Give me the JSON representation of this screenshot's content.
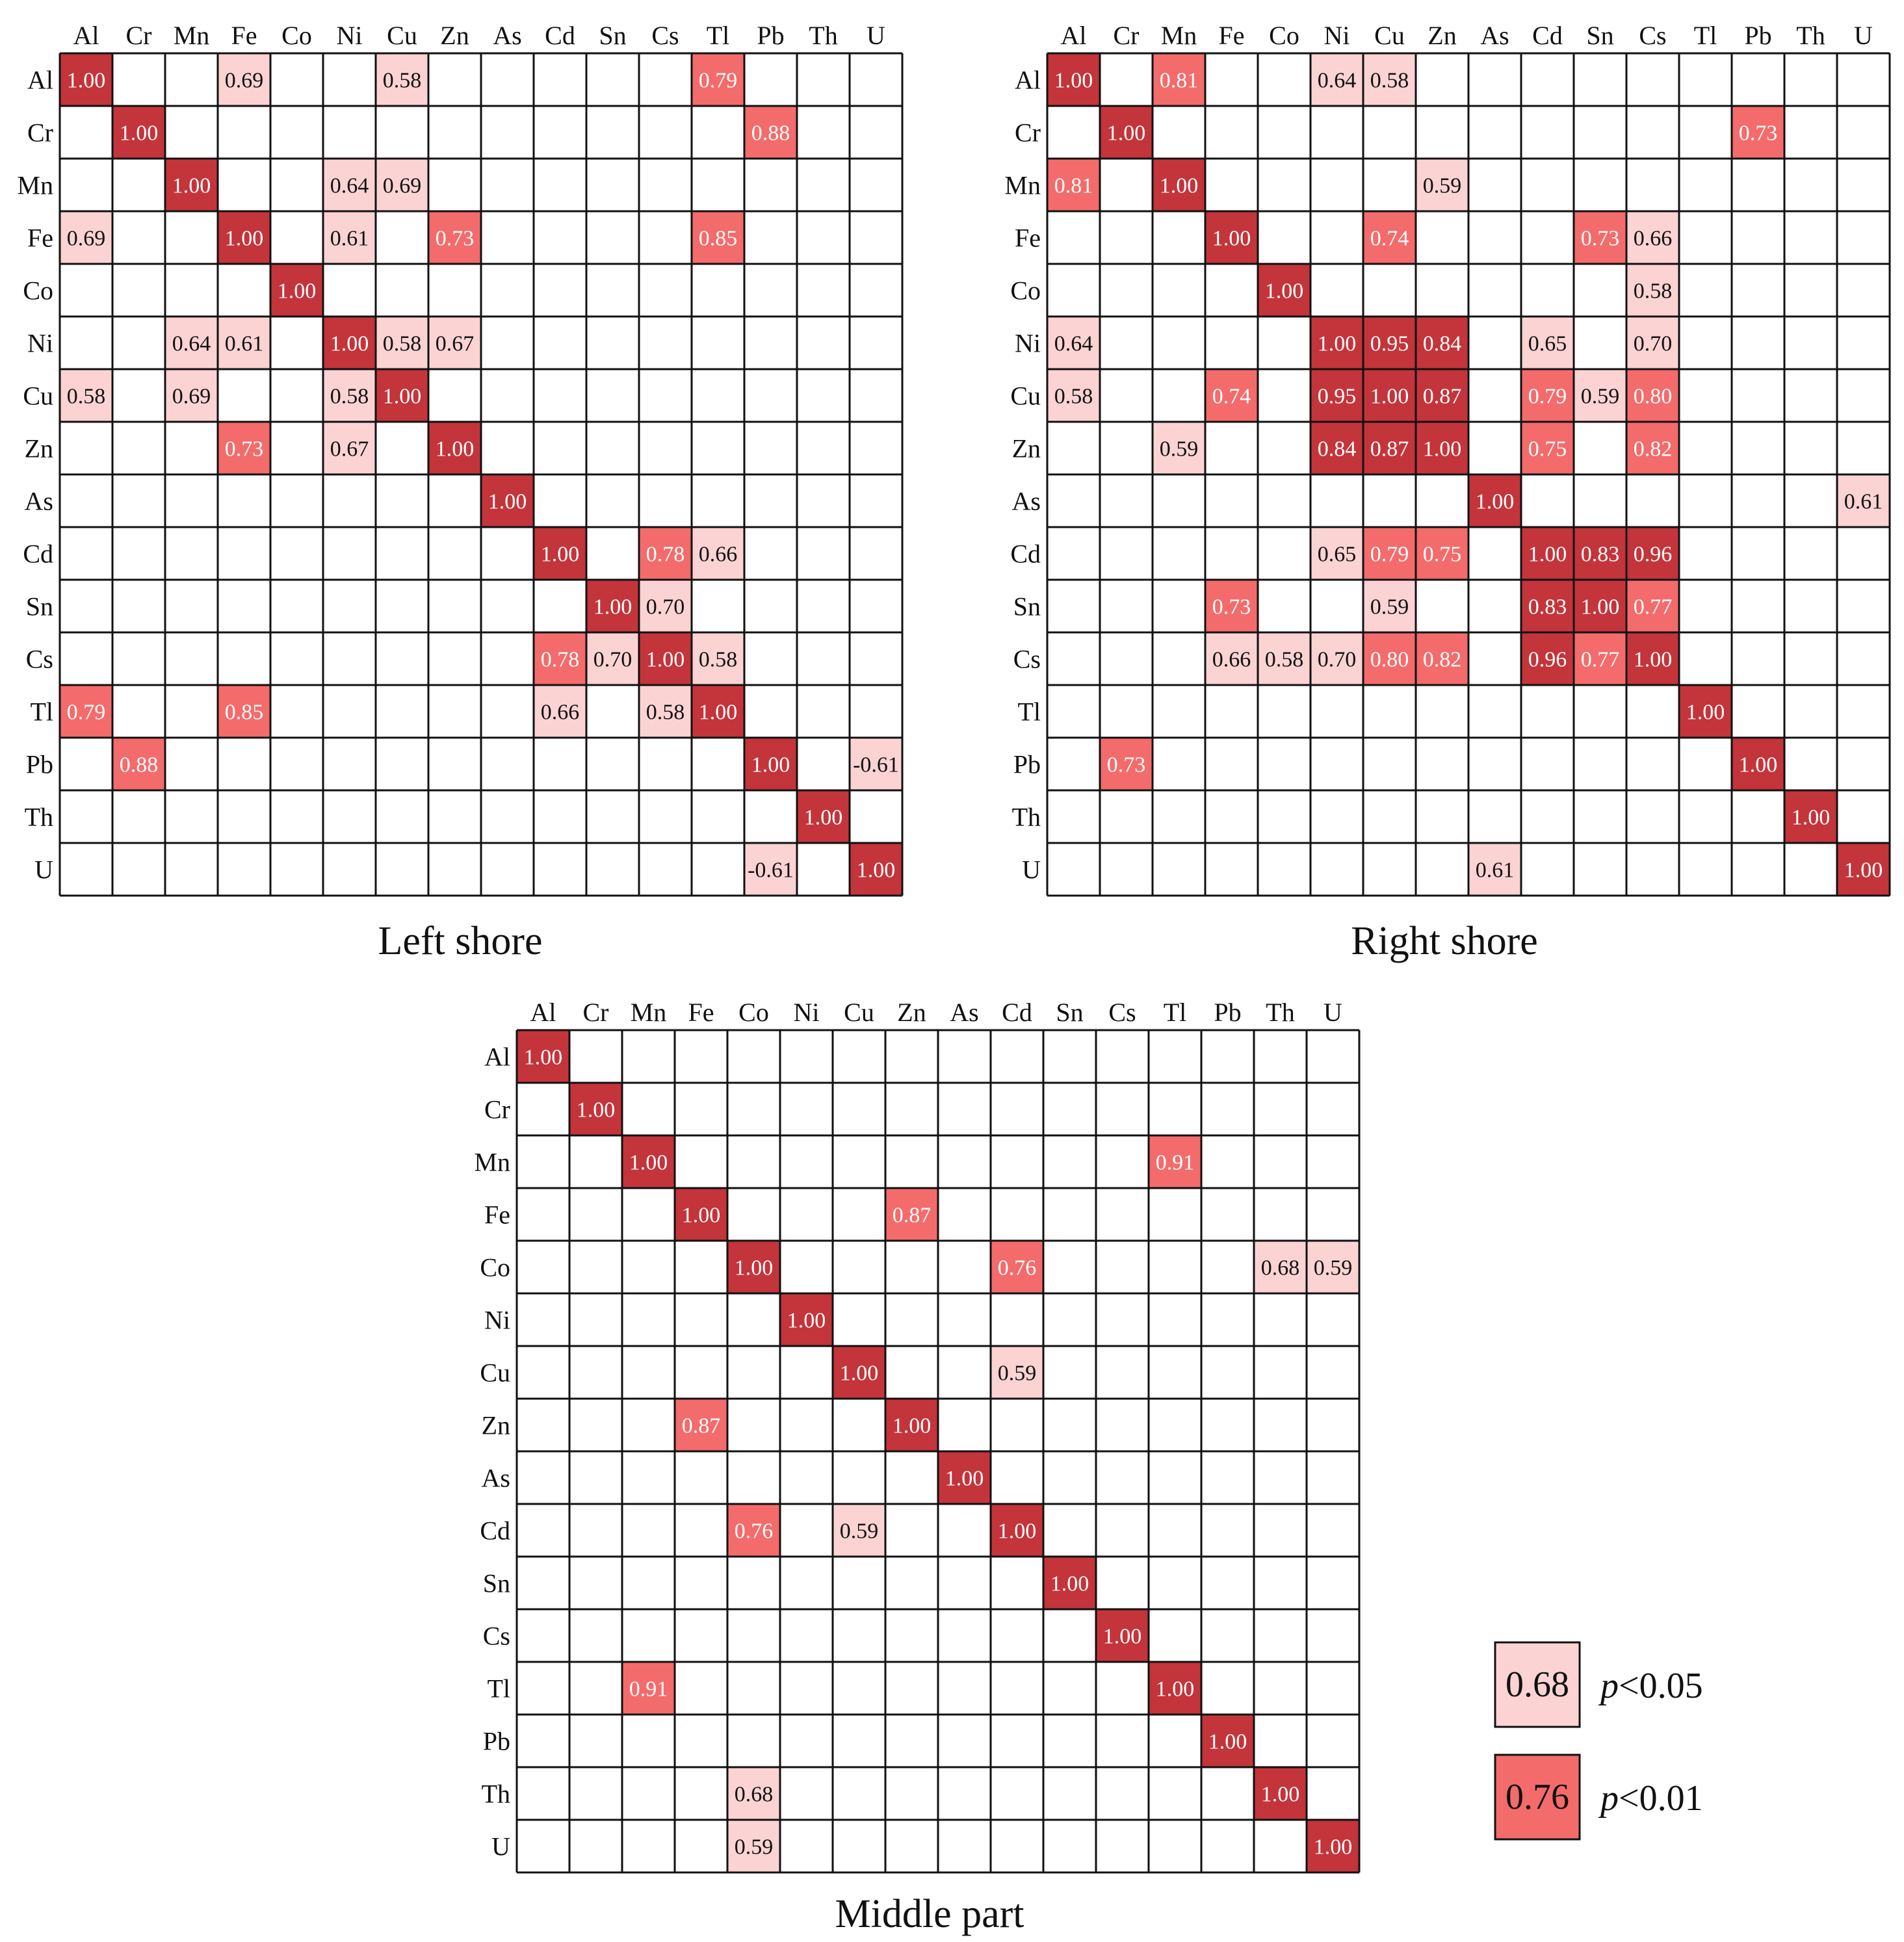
{
  "chart_data": [
    {
      "type": "heatmap",
      "title": "Left shore",
      "labels": [
        "Al",
        "Cr",
        "Mn",
        "Fe",
        "Co",
        "Ni",
        "Cu",
        "Zn",
        "As",
        "Cd",
        "Sn",
        "Cs",
        "Tl",
        "Pb",
        "Th",
        "U"
      ],
      "diagonal": 1.0,
      "cells": [
        {
          "row": "Al",
          "col": "Fe",
          "value": 0.69,
          "sig": "p<0.05"
        },
        {
          "row": "Al",
          "col": "Cu",
          "value": 0.58,
          "sig": "p<0.05"
        },
        {
          "row": "Al",
          "col": "Tl",
          "value": 0.79,
          "sig": "p<0.01"
        },
        {
          "row": "Cr",
          "col": "Pb",
          "value": 0.88,
          "sig": "p<0.01"
        },
        {
          "row": "Mn",
          "col": "Ni",
          "value": 0.64,
          "sig": "p<0.05"
        },
        {
          "row": "Mn",
          "col": "Cu",
          "value": 0.69,
          "sig": "p<0.05"
        },
        {
          "row": "Fe",
          "col": "Al",
          "value": 0.69,
          "sig": "p<0.05"
        },
        {
          "row": "Fe",
          "col": "Ni",
          "value": 0.61,
          "sig": "p<0.05"
        },
        {
          "row": "Fe",
          "col": "Zn",
          "value": 0.73,
          "sig": "p<0.01"
        },
        {
          "row": "Fe",
          "col": "Tl",
          "value": 0.85,
          "sig": "p<0.01"
        },
        {
          "row": "Ni",
          "col": "Mn",
          "value": 0.64,
          "sig": "p<0.05"
        },
        {
          "row": "Ni",
          "col": "Fe",
          "value": 0.61,
          "sig": "p<0.05"
        },
        {
          "row": "Ni",
          "col": "Cu",
          "value": 0.58,
          "sig": "p<0.05"
        },
        {
          "row": "Ni",
          "col": "Zn",
          "value": 0.67,
          "sig": "p<0.05"
        },
        {
          "row": "Cu",
          "col": "Al",
          "value": 0.58,
          "sig": "p<0.05"
        },
        {
          "row": "Cu",
          "col": "Mn",
          "value": 0.69,
          "sig": "p<0.05"
        },
        {
          "row": "Cu",
          "col": "Ni",
          "value": 0.58,
          "sig": "p<0.05"
        },
        {
          "row": "Zn",
          "col": "Fe",
          "value": 0.73,
          "sig": "p<0.01"
        },
        {
          "row": "Zn",
          "col": "Ni",
          "value": 0.67,
          "sig": "p<0.05"
        },
        {
          "row": "Cd",
          "col": "Cs",
          "value": 0.78,
          "sig": "p<0.01"
        },
        {
          "row": "Cd",
          "col": "Tl",
          "value": 0.66,
          "sig": "p<0.05"
        },
        {
          "row": "Sn",
          "col": "Cs",
          "value": 0.7,
          "sig": "p<0.05"
        },
        {
          "row": "Cs",
          "col": "Cd",
          "value": 0.78,
          "sig": "p<0.01"
        },
        {
          "row": "Cs",
          "col": "Sn",
          "value": 0.7,
          "sig": "p<0.05"
        },
        {
          "row": "Cs",
          "col": "Tl",
          "value": 0.58,
          "sig": "p<0.05"
        },
        {
          "row": "Tl",
          "col": "Al",
          "value": 0.79,
          "sig": "p<0.01"
        },
        {
          "row": "Tl",
          "col": "Fe",
          "value": 0.85,
          "sig": "p<0.01"
        },
        {
          "row": "Tl",
          "col": "Cd",
          "value": 0.66,
          "sig": "p<0.05"
        },
        {
          "row": "Tl",
          "col": "Cs",
          "value": 0.58,
          "sig": "p<0.05"
        },
        {
          "row": "Pb",
          "col": "Cr",
          "value": 0.88,
          "sig": "p<0.01"
        },
        {
          "row": "Pb",
          "col": "U",
          "value": -0.61,
          "sig": "p<0.05"
        },
        {
          "row": "U",
          "col": "Pb",
          "value": -0.61,
          "sig": "p<0.05"
        }
      ]
    },
    {
      "type": "heatmap",
      "title": "Right shore",
      "labels": [
        "Al",
        "Cr",
        "Mn",
        "Fe",
        "Co",
        "Ni",
        "Cu",
        "Zn",
        "As",
        "Cd",
        "Sn",
        "Cs",
        "Tl",
        "Pb",
        "Th",
        "U"
      ],
      "diagonal": 1.0,
      "cells": [
        {
          "row": "Al",
          "col": "Mn",
          "value": 0.81,
          "sig": "p<0.01"
        },
        {
          "row": "Al",
          "col": "Ni",
          "value": 0.64,
          "sig": "p<0.05"
        },
        {
          "row": "Al",
          "col": "Cu",
          "value": 0.58,
          "sig": "p<0.05"
        },
        {
          "row": "Cr",
          "col": "Pb",
          "value": 0.73,
          "sig": "p<0.01"
        },
        {
          "row": "Mn",
          "col": "Al",
          "value": 0.81,
          "sig": "p<0.01"
        },
        {
          "row": "Mn",
          "col": "Zn",
          "value": 0.59,
          "sig": "p<0.05"
        },
        {
          "row": "Fe",
          "col": "Cu",
          "value": 0.74,
          "sig": "p<0.01"
        },
        {
          "row": "Fe",
          "col": "Sn",
          "value": 0.73,
          "sig": "p<0.01"
        },
        {
          "row": "Fe",
          "col": "Cs",
          "value": 0.66,
          "sig": "p<0.05"
        },
        {
          "row": "Co",
          "col": "Cs",
          "value": 0.58,
          "sig": "p<0.05"
        },
        {
          "row": "Ni",
          "col": "Al",
          "value": 0.64,
          "sig": "p<0.05"
        },
        {
          "row": "Ni",
          "col": "Cu",
          "value": 0.95,
          "sig": "p<0.001"
        },
        {
          "row": "Ni",
          "col": "Zn",
          "value": 0.84,
          "sig": "p<0.001"
        },
        {
          "row": "Ni",
          "col": "Cd",
          "value": 0.65,
          "sig": "p<0.05"
        },
        {
          "row": "Ni",
          "col": "Cs",
          "value": 0.7,
          "sig": "p<0.05"
        },
        {
          "row": "Cu",
          "col": "Al",
          "value": 0.58,
          "sig": "p<0.05"
        },
        {
          "row": "Cu",
          "col": "Fe",
          "value": 0.74,
          "sig": "p<0.01"
        },
        {
          "row": "Cu",
          "col": "Ni",
          "value": 0.95,
          "sig": "p<0.001"
        },
        {
          "row": "Cu",
          "col": "Zn",
          "value": 0.87,
          "sig": "p<0.001"
        },
        {
          "row": "Cu",
          "col": "Cd",
          "value": 0.79,
          "sig": "p<0.01"
        },
        {
          "row": "Cu",
          "col": "Sn",
          "value": 0.59,
          "sig": "p<0.05"
        },
        {
          "row": "Cu",
          "col": "Cs",
          "value": 0.8,
          "sig": "p<0.01"
        },
        {
          "row": "Zn",
          "col": "Mn",
          "value": 0.59,
          "sig": "p<0.05"
        },
        {
          "row": "Zn",
          "col": "Ni",
          "value": 0.84,
          "sig": "p<0.001"
        },
        {
          "row": "Zn",
          "col": "Cu",
          "value": 0.87,
          "sig": "p<0.001"
        },
        {
          "row": "Zn",
          "col": "Cd",
          "value": 0.75,
          "sig": "p<0.01"
        },
        {
          "row": "Zn",
          "col": "Cs",
          "value": 0.82,
          "sig": "p<0.01"
        },
        {
          "row": "As",
          "col": "U",
          "value": 0.61,
          "sig": "p<0.05"
        },
        {
          "row": "Cd",
          "col": "Ni",
          "value": 0.65,
          "sig": "p<0.05"
        },
        {
          "row": "Cd",
          "col": "Cu",
          "value": 0.79,
          "sig": "p<0.01"
        },
        {
          "row": "Cd",
          "col": "Zn",
          "value": 0.75,
          "sig": "p<0.01"
        },
        {
          "row": "Cd",
          "col": "Sn",
          "value": 0.83,
          "sig": "p<0.001"
        },
        {
          "row": "Cd",
          "col": "Cs",
          "value": 0.96,
          "sig": "p<0.001"
        },
        {
          "row": "Sn",
          "col": "Fe",
          "value": 0.73,
          "sig": "p<0.01"
        },
        {
          "row": "Sn",
          "col": "Cu",
          "value": 0.59,
          "sig": "p<0.05"
        },
        {
          "row": "Sn",
          "col": "Cd",
          "value": 0.83,
          "sig": "p<0.001"
        },
        {
          "row": "Sn",
          "col": "Cs",
          "value": 0.77,
          "sig": "p<0.01"
        },
        {
          "row": "Cs",
          "col": "Fe",
          "value": 0.66,
          "sig": "p<0.05"
        },
        {
          "row": "Cs",
          "col": "Co",
          "value": 0.58,
          "sig": "p<0.05"
        },
        {
          "row": "Cs",
          "col": "Ni",
          "value": 0.7,
          "sig": "p<0.05"
        },
        {
          "row": "Cs",
          "col": "Cu",
          "value": 0.8,
          "sig": "p<0.01"
        },
        {
          "row": "Cs",
          "col": "Zn",
          "value": 0.82,
          "sig": "p<0.01"
        },
        {
          "row": "Cs",
          "col": "Cd",
          "value": 0.96,
          "sig": "p<0.001"
        },
        {
          "row": "Cs",
          "col": "Sn",
          "value": 0.77,
          "sig": "p<0.01"
        },
        {
          "row": "Pb",
          "col": "Cr",
          "value": 0.73,
          "sig": "p<0.01"
        },
        {
          "row": "U",
          "col": "As",
          "value": 0.61,
          "sig": "p<0.05"
        }
      ]
    },
    {
      "type": "heatmap",
      "title": "Middle part",
      "labels": [
        "Al",
        "Cr",
        "Mn",
        "Fe",
        "Co",
        "Ni",
        "Cu",
        "Zn",
        "As",
        "Cd",
        "Sn",
        "Cs",
        "Tl",
        "Pb",
        "Th",
        "U"
      ],
      "diagonal": 1.0,
      "cells": [
        {
          "row": "Mn",
          "col": "Tl",
          "value": 0.91,
          "sig": "p<0.01"
        },
        {
          "row": "Fe",
          "col": "Zn",
          "value": 0.87,
          "sig": "p<0.01"
        },
        {
          "row": "Co",
          "col": "Cd",
          "value": 0.76,
          "sig": "p<0.01"
        },
        {
          "row": "Co",
          "col": "Th",
          "value": 0.68,
          "sig": "p<0.05"
        },
        {
          "row": "Co",
          "col": "U",
          "value": 0.59,
          "sig": "p<0.05"
        },
        {
          "row": "Cu",
          "col": "Cd",
          "value": 0.59,
          "sig": "p<0.05"
        },
        {
          "row": "Zn",
          "col": "Fe",
          "value": 0.87,
          "sig": "p<0.01"
        },
        {
          "row": "Cd",
          "col": "Co",
          "value": 0.76,
          "sig": "p<0.01"
        },
        {
          "row": "Cd",
          "col": "Cu",
          "value": 0.59,
          "sig": "p<0.05"
        },
        {
          "row": "Tl",
          "col": "Mn",
          "value": 0.91,
          "sig": "p<0.01"
        },
        {
          "row": "Th",
          "col": "Co",
          "value": 0.68,
          "sig": "p<0.05"
        },
        {
          "row": "U",
          "col": "Co",
          "value": 0.59,
          "sig": "p<0.05"
        }
      ]
    }
  ],
  "legend": [
    {
      "value_text": "0.68",
      "label_italic": "p",
      "label_rest": "<0.05",
      "color": "#fbd3d3"
    },
    {
      "value_text": "0.76",
      "label_italic": "p",
      "label_rest": "<0.01",
      "color": "#f46b6b"
    }
  ],
  "colors": {
    "diagonal": "#c4343b",
    "strong": "#c4343b",
    "p001": "#f46b6b",
    "p005": "#fbd3d3",
    "grid": "#111111",
    "text_dark": "#111111",
    "text_light": "#ffffff"
  }
}
